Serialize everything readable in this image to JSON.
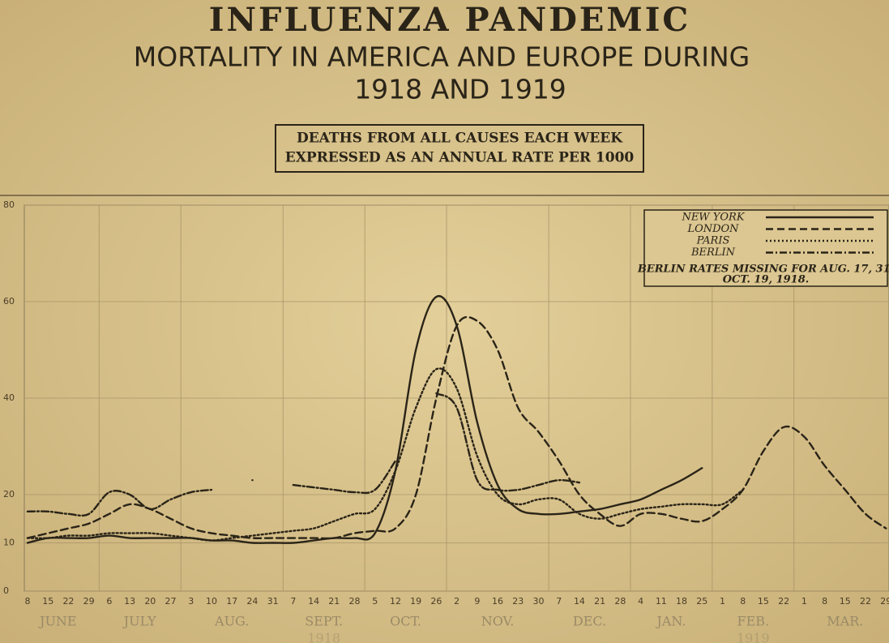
{
  "chart_data": {
    "type": "line",
    "title": "INFLUENZA PANDEMIC",
    "subtitle": [
      "MORTALITY IN AMERICA AND EUROPE DURING",
      "1918 AND 1919"
    ],
    "box_text": [
      "DEATHS FROM ALL CAUSES EACH WEEK",
      "EXPRESSED AS AN ANNUAL RATE PER 1000"
    ],
    "categories": [
      "8",
      "15",
      "22",
      "29",
      "6",
      "13",
      "20",
      "27",
      "3",
      "10",
      "17",
      "24",
      "31",
      "7",
      "14",
      "21",
      "28",
      "5",
      "12",
      "19",
      "26",
      "2",
      "9",
      "16",
      "23",
      "30",
      "7",
      "14",
      "21",
      "28",
      "4",
      "11",
      "18",
      "25",
      "1",
      "8",
      "15",
      "22",
      "1",
      "8",
      "15",
      "22",
      "29"
    ],
    "months": [
      "JUNE",
      "JULY",
      "AUG.",
      "SEPT.",
      "OCT.",
      "NOV.",
      "DEC.",
      "JAN.",
      "FEB.",
      "MAR."
    ],
    "years": [
      "1918",
      "1919"
    ],
    "ylim": [
      0,
      80
    ],
    "yticks": [
      0,
      10,
      20,
      40,
      60,
      80
    ],
    "grid": true,
    "legend": "upper right",
    "legend_note": [
      "BERLIN RATES MISSING FOR AUG. 17, 31,",
      "OCT. 19, 1918."
    ],
    "series": [
      {
        "name": "NEW YORK",
        "color": "#2a2418",
        "style": "solid",
        "values": [
          10,
          11,
          11,
          11,
          11.5,
          11,
          11,
          11,
          11,
          10.5,
          10.5,
          10,
          10,
          10,
          10.5,
          11,
          11,
          12,
          25,
          50,
          61,
          55,
          35,
          22,
          17,
          16,
          16,
          16.5,
          17,
          18,
          19,
          21,
          23,
          25.5,
          null,
          null,
          null,
          null,
          null,
          null,
          null,
          null,
          null
        ]
      },
      {
        "name": "LONDON",
        "color": "#2a2418",
        "style": "dashed",
        "values": [
          11,
          12,
          13,
          14,
          16,
          18,
          17,
          15,
          13,
          12,
          11.5,
          11,
          11,
          11,
          11,
          11,
          12,
          12.5,
          13,
          20,
          40,
          55,
          56,
          50,
          38,
          33,
          27,
          20,
          16,
          13.5,
          16,
          16,
          15,
          14.5,
          17,
          21,
          29,
          34,
          32,
          26,
          21,
          16,
          13
        ]
      },
      {
        "name": "PARIS",
        "color": "#2a2418",
        "style": "dotted",
        "values": [
          11,
          11,
          11.5,
          11.5,
          12,
          12,
          12,
          11.5,
          11,
          10.5,
          11,
          11.5,
          12,
          12.5,
          13,
          14.5,
          16,
          17,
          25,
          38,
          46,
          42,
          28,
          20,
          18,
          19,
          19,
          16,
          15,
          16,
          17,
          17.5,
          18,
          18,
          18,
          21,
          null,
          null,
          null,
          null,
          null,
          null,
          null
        ]
      },
      {
        "name": "BERLIN",
        "color": "#2a2418",
        "style": "dashdot",
        "values": [
          16.5,
          16.5,
          16,
          16,
          20.5,
          20,
          17,
          19,
          20.5,
          21,
          null,
          23,
          null,
          22,
          21.5,
          21,
          20.5,
          21,
          27,
          null,
          41,
          38,
          23,
          21,
          21,
          22,
          23,
          22.5,
          null,
          null,
          null,
          null,
          null,
          null,
          null,
          null,
          null,
          null,
          null,
          null,
          null,
          null,
          null
        ]
      }
    ]
  }
}
